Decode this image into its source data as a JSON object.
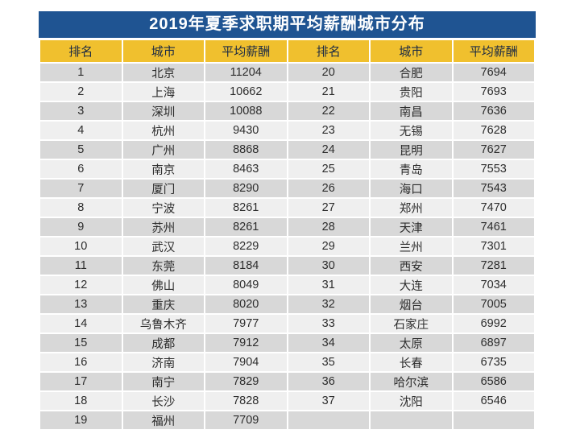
{
  "colors": {
    "page_bg": "#ffffff",
    "title_bg": "#1f5492",
    "title_text": "#ffffff",
    "header_bg": "#f0c02e",
    "header_text": "#1b2a44",
    "row_odd_bg": "#d8d8d8",
    "row_even_bg": "#efefef",
    "row_text": "#2d2d2d",
    "grid": "#ffffff"
  },
  "table": {
    "title": "2019年夏季求职期平均薪酬城市分布",
    "headers": [
      "排名",
      "城市",
      "平均薪酬",
      "排名",
      "城市",
      "平均薪酬"
    ],
    "display_rows": [
      [
        "1",
        "北京",
        "11204",
        "20",
        "合肥",
        "7694"
      ],
      [
        "2",
        "上海",
        "10662",
        "21",
        "贵阳",
        "7693"
      ],
      [
        "3",
        "深圳",
        "10088",
        "22",
        "南昌",
        "7636"
      ],
      [
        "4",
        "杭州",
        "9430",
        "23",
        "无锡",
        "7628"
      ],
      [
        "5",
        "广州",
        "8868",
        "24",
        "昆明",
        "7627"
      ],
      [
        "6",
        "南京",
        "8463",
        "25",
        "青岛",
        "7553"
      ],
      [
        "7",
        "厦门",
        "8290",
        "26",
        "海口",
        "7543"
      ],
      [
        "8",
        "宁波",
        "8261",
        "27",
        "郑州",
        "7470"
      ],
      [
        "9",
        "苏州",
        "8261",
        "28",
        "天津",
        "7461"
      ],
      [
        "10",
        "武汉",
        "8229",
        "29",
        "兰州",
        "7301"
      ],
      [
        "11",
        "东莞",
        "8184",
        "30",
        "西安",
        "7281"
      ],
      [
        "12",
        "佛山",
        "8049",
        "31",
        "大连",
        "7034"
      ],
      [
        "13",
        "重庆",
        "8020",
        "32",
        "烟台",
        "7005"
      ],
      [
        "14",
        "乌鲁木齐",
        "7977",
        "33",
        "石家庄",
        "6992"
      ],
      [
        "15",
        "成都",
        "7912",
        "34",
        "太原",
        "6897"
      ],
      [
        "16",
        "济南",
        "7904",
        "35",
        "长春",
        "6735"
      ],
      [
        "17",
        "南宁",
        "7829",
        "36",
        "哈尔滨",
        "6586"
      ],
      [
        "18",
        "长沙",
        "7828",
        "37",
        "沈阳",
        "6546"
      ],
      [
        "19",
        "福州",
        "7709",
        "",
        "",
        ""
      ]
    ]
  },
  "chart_data": {
    "type": "table",
    "title": "2019年夏季求职期平均薪酬城市分布",
    "columns": [
      "排名",
      "城市",
      "平均薪酬"
    ],
    "rows": [
      [
        1,
        "北京",
        11204
      ],
      [
        2,
        "上海",
        10662
      ],
      [
        3,
        "深圳",
        10088
      ],
      [
        4,
        "杭州",
        9430
      ],
      [
        5,
        "广州",
        8868
      ],
      [
        6,
        "南京",
        8463
      ],
      [
        7,
        "厦门",
        8290
      ],
      [
        8,
        "宁波",
        8261
      ],
      [
        9,
        "苏州",
        8261
      ],
      [
        10,
        "武汉",
        8229
      ],
      [
        11,
        "东莞",
        8184
      ],
      [
        12,
        "佛山",
        8049
      ],
      [
        13,
        "重庆",
        8020
      ],
      [
        14,
        "乌鲁木齐",
        7977
      ],
      [
        15,
        "成都",
        7912
      ],
      [
        16,
        "济南",
        7904
      ],
      [
        17,
        "南宁",
        7829
      ],
      [
        18,
        "长沙",
        7828
      ],
      [
        19,
        "福州",
        7709
      ],
      [
        20,
        "合肥",
        7694
      ],
      [
        21,
        "贵阳",
        7693
      ],
      [
        22,
        "南昌",
        7636
      ],
      [
        23,
        "无锡",
        7628
      ],
      [
        24,
        "昆明",
        7627
      ],
      [
        25,
        "青岛",
        7553
      ],
      [
        26,
        "海口",
        7543
      ],
      [
        27,
        "郑州",
        7470
      ],
      [
        28,
        "天津",
        7461
      ],
      [
        29,
        "兰州",
        7301
      ],
      [
        30,
        "西安",
        7281
      ],
      [
        31,
        "大连",
        7034
      ],
      [
        32,
        "烟台",
        7005
      ],
      [
        33,
        "石家庄",
        6992
      ],
      [
        34,
        "太原",
        6897
      ],
      [
        35,
        "长春",
        6735
      ],
      [
        36,
        "哈尔滨",
        6586
      ],
      [
        37,
        "沈阳",
        6546
      ]
    ],
    "layout": {
      "two_column_split": true,
      "left_ranks": "1-19",
      "right_ranks": "20-37"
    }
  }
}
